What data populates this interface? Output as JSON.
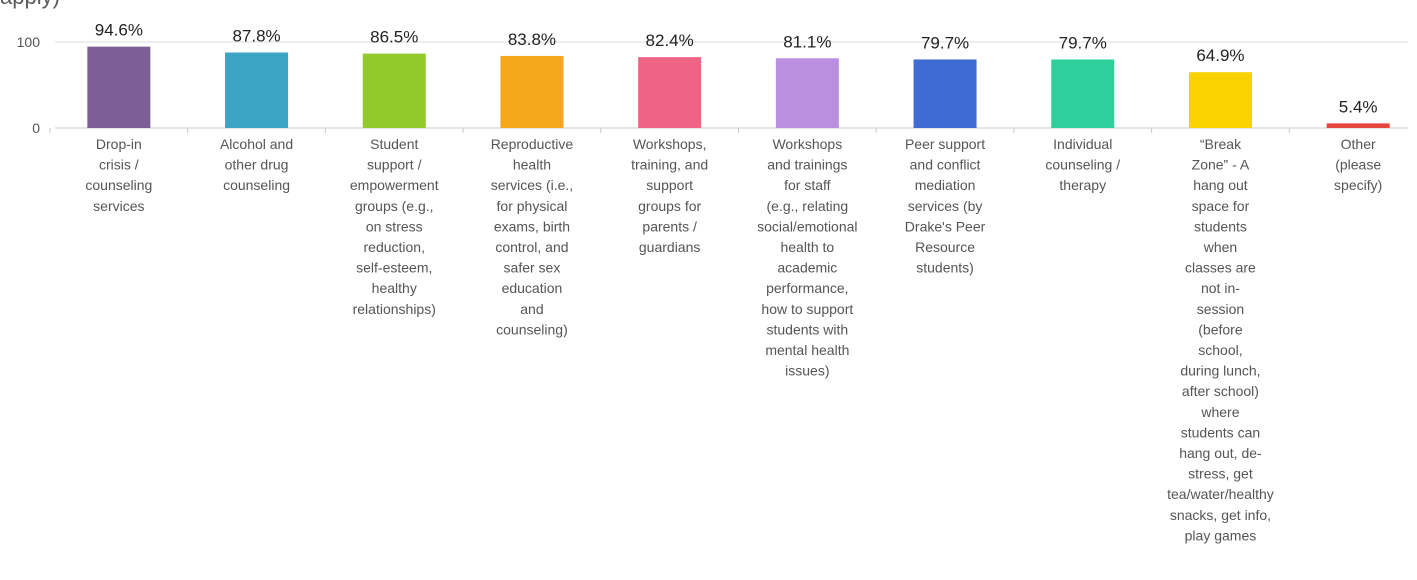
{
  "header": {
    "title_fragment": "apply)"
  },
  "chart_data": {
    "type": "bar",
    "ylim": [
      0,
      100
    ],
    "yticks": [
      0,
      100
    ],
    "grid": true,
    "categories": [
      [
        "Drop-in",
        "crisis /",
        "counseling",
        "services"
      ],
      [
        "Alcohol and",
        "other drug",
        "counseling"
      ],
      [
        "Student",
        "support /",
        "empowerment",
        "groups (e.g.,",
        "on stress",
        "reduction,",
        "self-esteem,",
        "healthy",
        "relationships)"
      ],
      [
        "Reproductive",
        "health",
        "services (i.e.,",
        "for physical",
        "exams, birth",
        "control, and",
        "safer sex",
        "education",
        "and",
        "counseling)"
      ],
      [
        "Workshops,",
        "training, and",
        "support",
        "groups for",
        "parents /",
        "guardians"
      ],
      [
        "Workshops",
        "and trainings",
        "for staff",
        "(e.g., relating",
        "social/emotional",
        "health to",
        "academic",
        "performance,",
        "how to support",
        "students with",
        "mental health",
        "issues)"
      ],
      [
        "Peer support",
        "and conflict",
        "mediation",
        "services (by",
        "Drake's Peer",
        "Resource",
        "students)"
      ],
      [
        "Individual",
        "counseling /",
        "therapy"
      ],
      [
        "“Break",
        "Zone” - A",
        "hang out",
        "space for",
        "students",
        "when",
        "classes are",
        "not in-",
        "session",
        "(before",
        "school,",
        "during lunch,",
        "after school)",
        "where",
        "students can",
        "hang out, de-",
        "stress, get",
        "tea/water/healthy",
        "snacks, get info,",
        "play games"
      ],
      [
        "Other",
        "(please",
        "specify)"
      ]
    ],
    "values": [
      94.6,
      87.8,
      86.5,
      83.8,
      82.4,
      81.1,
      79.7,
      79.7,
      64.9,
      5.4
    ],
    "value_labels": [
      "94.6%",
      "87.8%",
      "86.5%",
      "83.8%",
      "82.4%",
      "81.1%",
      "79.7%",
      "79.7%",
      "64.9%",
      "5.4%"
    ],
    "colors": [
      "#7e5f95",
      "#3ca4c4",
      "#92c92b",
      "#f5a61b",
      "#ef6484",
      "#bb8fe0",
      "#3e6cd4",
      "#2fcf9c",
      "#f9d200",
      "#e5463e"
    ]
  }
}
